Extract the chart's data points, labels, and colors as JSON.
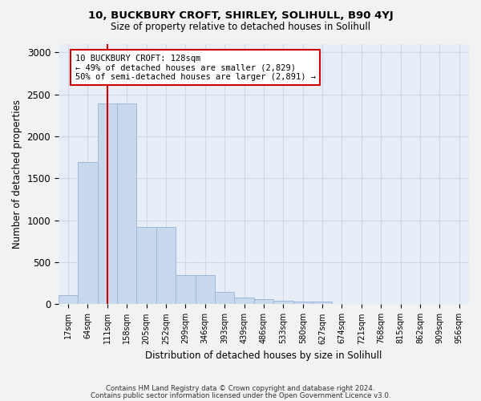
{
  "title_line1": "10, BUCKBURY CROFT, SHIRLEY, SOLIHULL, B90 4YJ",
  "title_line2": "Size of property relative to detached houses in Solihull",
  "xlabel": "Distribution of detached houses by size in Solihull",
  "ylabel": "Number of detached properties",
  "bar_values": [
    110,
    1700,
    2390,
    2390,
    920,
    920,
    350,
    350,
    150,
    80,
    60,
    40,
    30,
    30,
    0,
    0,
    0,
    0,
    0,
    0,
    0
  ],
  "bar_labels": [
    "17sqm",
    "64sqm",
    "111sqm",
    "158sqm",
    "205sqm",
    "252sqm",
    "299sqm",
    "346sqm",
    "393sqm",
    "439sqm",
    "486sqm",
    "533sqm",
    "580sqm",
    "627sqm",
    "674sqm",
    "721sqm",
    "768sqm",
    "815sqm",
    "862sqm",
    "909sqm",
    "956sqm"
  ],
  "bar_color": "#c9d9ed",
  "bar_edge_color": "#a0b8d8",
  "annotation_line1": "10 BUCKBURY CROFT: 128sqm",
  "annotation_line2": "← 49% of detached houses are smaller (2,829)",
  "annotation_line3": "50% of semi-detached houses are larger (2,891) →",
  "annotation_box_color": "#ffffff",
  "annotation_box_edge": "#cc0000",
  "vline_color": "#cc0000",
  "vline_x": 2.0,
  "ylim": [
    0,
    3100
  ],
  "yticks": [
    0,
    500,
    1000,
    1500,
    2000,
    2500,
    3000
  ],
  "grid_color": "#d0d8e8",
  "bg_color": "#e8eef8",
  "fig_bg_color": "#f2f2f2",
  "footer_line1": "Contains HM Land Registry data © Crown copyright and database right 2024.",
  "footer_line2": "Contains public sector information licensed under the Open Government Licence v3.0."
}
